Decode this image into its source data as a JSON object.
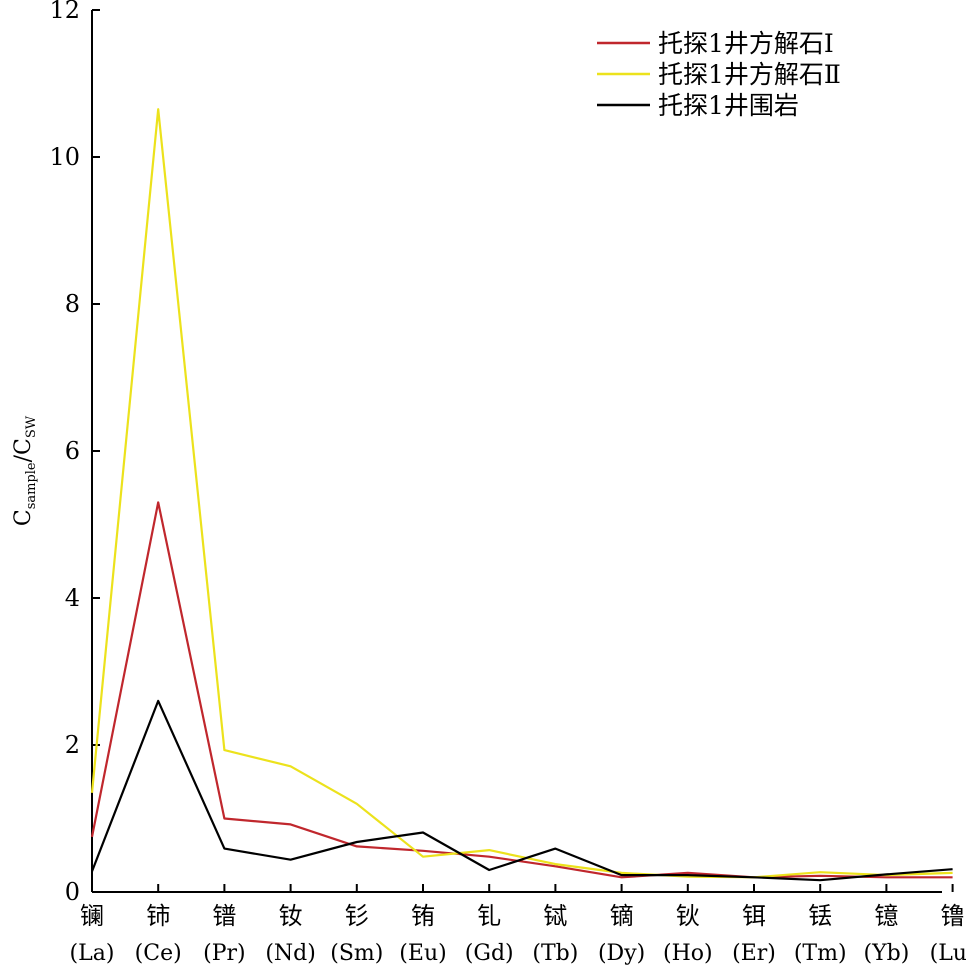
{
  "chart_data": {
    "type": "line",
    "title": "",
    "xlabel": "",
    "ylabel": {
      "main": "C",
      "sub1": "sample",
      "sep": "/C",
      "sub2": "SW"
    },
    "ylim": [
      0,
      12
    ],
    "yticks": [
      "0",
      "2",
      "4",
      "6",
      "8",
      "10",
      "12"
    ],
    "grid": false,
    "legend_position": "top-right",
    "categories": [
      {
        "cn": "镧",
        "en": "(La)"
      },
      {
        "cn": "铈",
        "en": "(Ce)"
      },
      {
        "cn": "镨",
        "en": "(Pr)"
      },
      {
        "cn": "钕",
        "en": "(Nd)"
      },
      {
        "cn": "钐",
        "en": "(Sm)"
      },
      {
        "cn": "铕",
        "en": "(Eu)"
      },
      {
        "cn": "钆",
        "en": "(Gd)"
      },
      {
        "cn": "铽",
        "en": "(Tb)"
      },
      {
        "cn": "镝",
        "en": "(Dy)"
      },
      {
        "cn": "钬",
        "en": "(Ho)"
      },
      {
        "cn": "铒",
        "en": "(Er)"
      },
      {
        "cn": "铥",
        "en": "(Tm)"
      },
      {
        "cn": "镱",
        "en": "(Yb)"
      },
      {
        "cn": "镥",
        "en": "(Lu)"
      }
    ],
    "series": [
      {
        "name": "托探1井方解石Ⅰ",
        "color": "#c0272d",
        "values": [
          0.75,
          5.3,
          1.0,
          0.92,
          0.62,
          0.56,
          0.48,
          0.35,
          0.2,
          0.26,
          0.2,
          0.22,
          0.2,
          0.2
        ]
      },
      {
        "name": "托探1井方解石Ⅱ",
        "color": "#ece21c",
        "values": [
          1.35,
          10.65,
          1.93,
          1.71,
          1.2,
          0.48,
          0.57,
          0.38,
          0.26,
          0.21,
          0.2,
          0.27,
          0.23,
          0.26
        ]
      },
      {
        "name": "托探1井围岩",
        "color": "#000000",
        "values": [
          0.28,
          2.6,
          0.59,
          0.44,
          0.68,
          0.81,
          0.3,
          0.59,
          0.23,
          0.23,
          0.2,
          0.16,
          0.24,
          0.31
        ]
      }
    ]
  }
}
